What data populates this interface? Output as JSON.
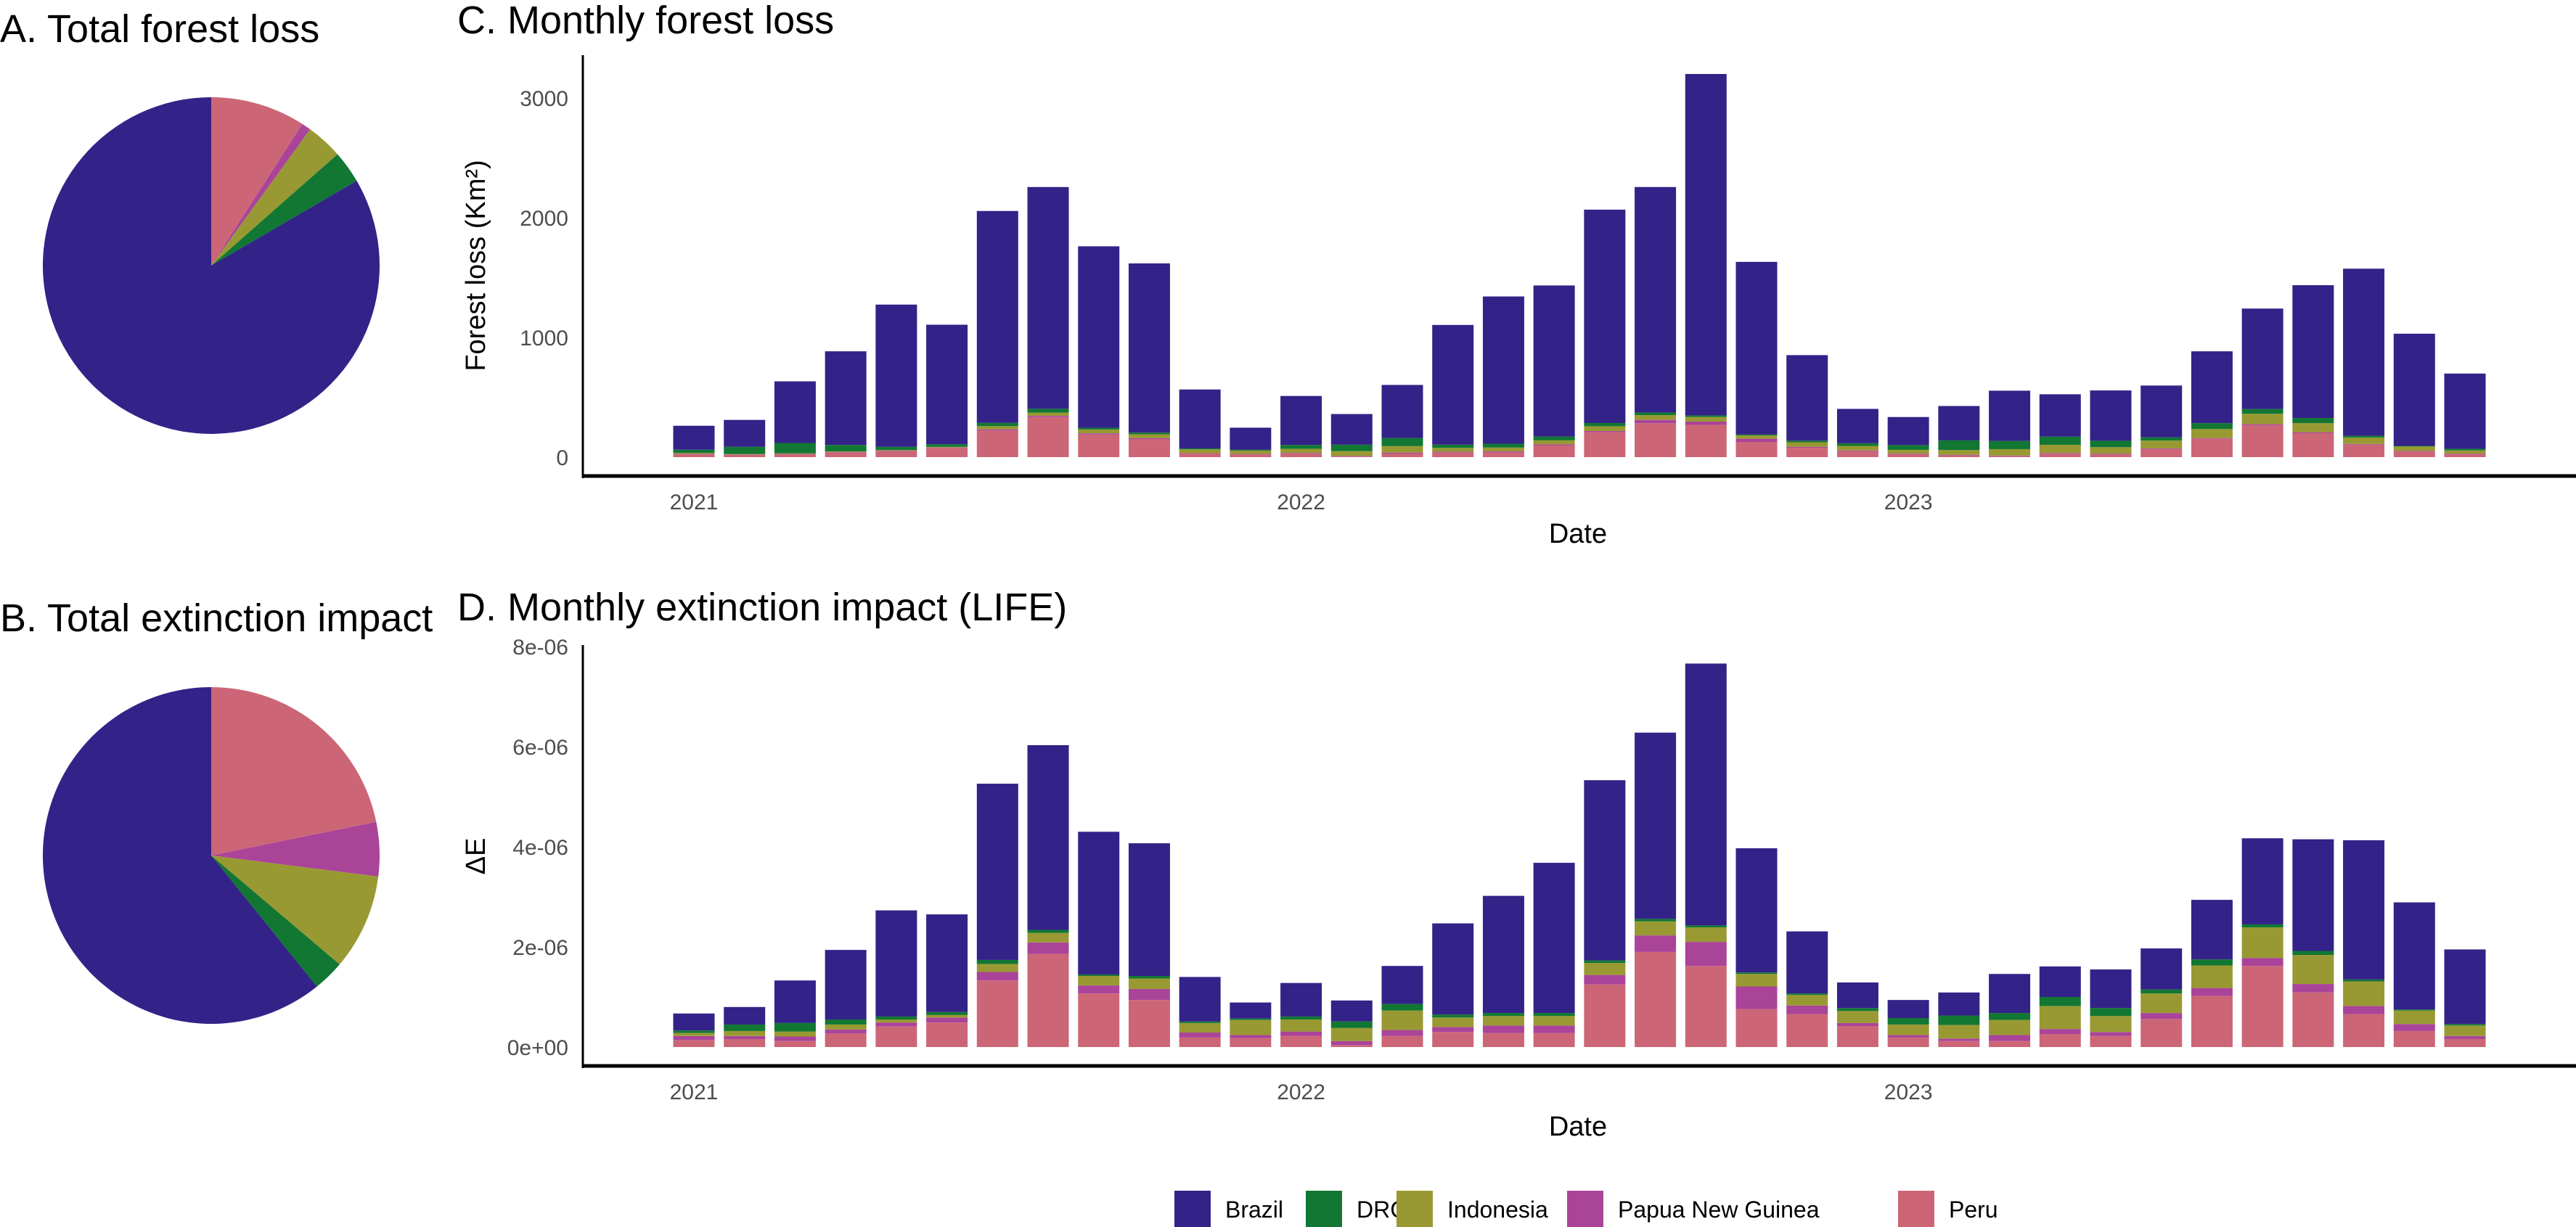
{
  "legend": {
    "items": [
      {
        "name": "Brazil",
        "color": "#332288"
      },
      {
        "name": "DRC",
        "color": "#117733"
      },
      {
        "name": "Indonesia",
        "color": "#999933"
      },
      {
        "name": "Papua New Guinea",
        "color": "#AA4499"
      },
      {
        "name": "Peru",
        "color": "#CC6677"
      }
    ],
    "placement": "bottom"
  },
  "chart_data": [
    {
      "type": "pie",
      "title": "A. Total forest loss",
      "categories": [
        "Brazil",
        "DRC",
        "Indonesia",
        "Papua New Guinea",
        "Peru"
      ],
      "values": [
        83.4,
        3.1,
        3.5,
        0.9,
        9.1
      ]
    },
    {
      "type": "pie",
      "title": "B. Total extinction impact",
      "categories": [
        "Brazil",
        "DRC",
        "Indonesia",
        "Papua New Guinea",
        "Peru"
      ],
      "values": [
        60.8,
        3.0,
        9.2,
        5.2,
        21.8
      ]
    },
    {
      "type": "bar",
      "stacked": true,
      "title": "C. Monthly forest loss",
      "xlabel": "Date",
      "ylabel": "Forest loss (Km²)",
      "ylim": [
        0,
        3360
      ],
      "yticks": [
        "0",
        "1000",
        "2000",
        "3000"
      ],
      "ytick_values": [
        0,
        1000,
        2000,
        3000
      ],
      "xticks": [
        "2021",
        "2022",
        "2023"
      ],
      "grid": false,
      "categories": [
        "2021-01",
        "2021-02",
        "2021-03",
        "2021-04",
        "2021-05",
        "2021-06",
        "2021-07",
        "2021-08",
        "2021-09",
        "2021-10",
        "2021-11",
        "2021-12",
        "2022-01",
        "2022-02",
        "2022-03",
        "2022-04",
        "2022-05",
        "2022-06",
        "2022-07",
        "2022-08",
        "2022-09",
        "2022-10",
        "2022-11",
        "2022-12",
        "2023-01",
        "2023-02",
        "2023-03",
        "2023-04",
        "2023-05",
        "2023-06",
        "2023-07",
        "2023-08",
        "2023-09",
        "2023-10",
        "2023-11",
        "2023-12"
      ],
      "series": [
        {
          "name": "Brazil",
          "values": [
            200,
            225,
            515,
            782,
            1188,
            998,
            1770,
            1852,
            1516,
            1413,
            492,
            184,
            409,
            256,
            443,
            1000,
            1230,
            1262,
            1782,
            1883,
            2851,
            1442,
            714,
            287,
            234,
            287,
            420,
            354,
            420,
            433,
            600,
            839,
            1109,
            1396,
            937,
            628
          ]
        },
        {
          "name": "DRC",
          "values": [
            27,
            59,
            86,
            54,
            27,
            22,
            27,
            32,
            14,
            14,
            8,
            8,
            32,
            54,
            68,
            27,
            32,
            32,
            27,
            22,
            14,
            8,
            14,
            22,
            40,
            81,
            68,
            68,
            54,
            27,
            49,
            40,
            43,
            14,
            5,
            14
          ]
        },
        {
          "name": "Indonesia",
          "values": [
            8,
            5,
            5,
            5,
            5,
            5,
            27,
            27,
            32,
            32,
            32,
            27,
            35,
            40,
            54,
            32,
            32,
            32,
            40,
            40,
            38,
            27,
            38,
            38,
            32,
            40,
            54,
            68,
            54,
            65,
            76,
            86,
            76,
            54,
            38,
            27
          ]
        },
        {
          "name": "Papua New Guinea",
          "values": [
            3,
            3,
            3,
            3,
            3,
            3,
            10,
            10,
            10,
            10,
            3,
            3,
            5,
            5,
            8,
            5,
            8,
            8,
            10,
            27,
            27,
            27,
            8,
            5,
            5,
            5,
            5,
            5,
            5,
            5,
            5,
            8,
            8,
            5,
            5,
            5
          ]
        },
        {
          "name": "Peru",
          "values": [
            24,
            19,
            24,
            40,
            51,
            78,
            222,
            335,
            189,
            149,
            30,
            24,
            30,
            5,
            30,
            40,
            40,
            100,
            208,
            284,
            270,
            127,
            78,
            51,
            24,
            14,
            8,
            30,
            24,
            68,
            154,
            268,
            200,
            105,
            46,
            24
          ]
        }
      ]
    },
    {
      "type": "bar",
      "stacked": true,
      "title": "D. Monthly extinction impact (LIFE)",
      "xlabel": "Date",
      "ylabel": "ΔE",
      "ylim": [
        0,
        8e-06
      ],
      "yticks": [
        "0e+00",
        "2e-06",
        "4e-06",
        "6e-06",
        "8e-06"
      ],
      "ytick_values": [
        0,
        2e-06,
        4e-06,
        6e-06,
        8e-06
      ],
      "xticks": [
        "2021",
        "2022",
        "2023"
      ],
      "grid": false,
      "categories": [
        "2021-01",
        "2021-02",
        "2021-03",
        "2021-04",
        "2021-05",
        "2021-06",
        "2021-07",
        "2021-08",
        "2021-09",
        "2021-10",
        "2021-11",
        "2021-12",
        "2022-01",
        "2022-02",
        "2022-03",
        "2022-04",
        "2022-05",
        "2022-06",
        "2022-07",
        "2022-08",
        "2022-09",
        "2022-10",
        "2022-11",
        "2022-12",
        "2023-01",
        "2023-02",
        "2023-03",
        "2023-04",
        "2023-05",
        "2023-06",
        "2023-07",
        "2023-08",
        "2023-09",
        "2023-10",
        "2023-11",
        "2023-12"
      ],
      "series": [
        {
          "name": "Brazil",
          "values": [
            3.4e-07,
            3.5e-07,
            8.5e-07,
            1.39e-06,
            2.12e-06,
            1.95e-06,
            3.52e-06,
            3.69e-06,
            2.85e-06,
            2.65e-06,
            8.9e-07,
            3.2e-07,
            6.7e-07,
            4.2e-07,
            7.6e-07,
            1.82e-06,
            2.34e-06,
            3e-06,
            3.6e-06,
            3.72e-06,
            5.23e-06,
            2.48e-06,
            1.24e-06,
            5.1e-07,
            3.6e-07,
            4.6e-07,
            7.8e-07,
            6.1e-07,
            7.7e-07,
            8.2e-07,
            1.19e-06,
            1.72e-06,
            2.23e-06,
            2.78e-06,
            2.14e-06,
            1.49e-06
          ]
        },
        {
          "name": "DRC",
          "values": [
            5e-08,
            1.3e-07,
            1.7e-07,
            1e-07,
            6e-08,
            6e-08,
            8e-08,
            6e-08,
            3e-08,
            5e-08,
            3e-08,
            3e-08,
            6e-08,
            1.3e-07,
            1.3e-07,
            6e-08,
            6e-08,
            6e-08,
            5e-08,
            5e-08,
            4e-08,
            3e-08,
            3e-08,
            6e-08,
            1.3e-07,
            1.9e-07,
            1.4e-07,
            1.8e-07,
            1.6e-07,
            8e-08,
            1.2e-07,
            6e-08,
            8e-08,
            4e-08,
            2e-08,
            3e-08
          ]
        },
        {
          "name": "Indonesia",
          "values": [
            6e-08,
            1e-07,
            1e-07,
            1e-07,
            6e-08,
            5e-08,
            1.6e-07,
            1.9e-07,
            1.9e-07,
            2.1e-07,
            1.9e-07,
            3e-07,
            2.4e-07,
            2.6e-07,
            3.9e-07,
            1.9e-07,
            1.9e-07,
            1.9e-07,
            2.4e-07,
            2.8e-07,
            2.9e-07,
            2.5e-07,
            2.1e-07,
            2.4e-07,
            2.1e-07,
            2.7e-07,
            3e-07,
            4.6e-07,
            3.2e-07,
            3.9e-07,
            4.5e-07,
            6.1e-07,
            5.8e-07,
            4.9e-07,
            2.7e-07,
            2.1e-07
          ]
        },
        {
          "name": "Papua New Guinea",
          "values": [
            8e-08,
            6e-08,
            9e-08,
            8e-08,
            8e-08,
            1e-07,
            1.7e-07,
            2.3e-07,
            1.6e-07,
            2.2e-07,
            1e-07,
            6e-08,
            9e-08,
            8e-08,
            1.2e-07,
            1e-07,
            1.5e-07,
            1.5e-07,
            1.9e-07,
            3.3e-07,
            4.8e-07,
            4.5e-07,
            1.7e-07,
            6e-08,
            5e-08,
            5e-08,
            1.2e-07,
            1e-07,
            8e-08,
            1.2e-07,
            1.6e-07,
            1.6e-07,
            1.7e-07,
            1.6e-07,
            1.4e-07,
            6e-08
          ]
        },
        {
          "name": "Peru",
          "values": [
            1.4e-07,
            1.6e-07,
            1.2e-07,
            2.7e-07,
            4.1e-07,
            4.9e-07,
            1.33e-06,
            1.86e-06,
            1.07e-06,
            9.4e-07,
            1.9e-07,
            1.8e-07,
            2.2e-07,
            4e-08,
            2.2e-07,
            3e-07,
            2.8e-07,
            2.8e-07,
            1.25e-06,
            1.9e-06,
            1.62e-06,
            7.6e-07,
            6.6e-07,
            4.2e-07,
            1.9e-07,
            1.2e-07,
            1.2e-07,
            2.6e-07,
            2.2e-07,
            5.6e-07,
            1.02e-06,
            1.62e-06,
            1.09e-06,
            6.6e-07,
            3.2e-07,
            1.6e-07
          ]
        }
      ]
    }
  ]
}
